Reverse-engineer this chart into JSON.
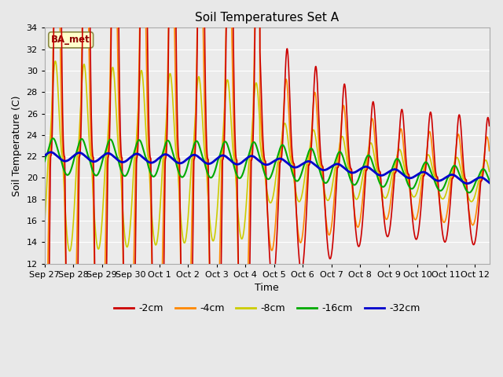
{
  "title": "Soil Temperatures Set A",
  "xlabel": "Time",
  "ylabel": "Soil Temperature (C)",
  "ylim": [
    12,
    34
  ],
  "yticks": [
    12,
    14,
    16,
    18,
    20,
    22,
    24,
    26,
    28,
    30,
    32,
    34
  ],
  "x_labels": [
    "Sep 27",
    "Sep 28",
    "Sep 29",
    "Sep 30",
    "Oct 1",
    "Oct 2",
    "Oct 3",
    "Oct 4",
    "Oct 5",
    "Oct 6",
    "Oct 7",
    "Oct 8",
    "Oct 9",
    "Oct 10",
    "Oct 11",
    "Oct 12"
  ],
  "annotation": "BA_met",
  "bg_color": "#e8e8e8",
  "plot_bg_color": "#ebebeb",
  "series_colors": {
    "-2cm": "#cc0000",
    "-4cm": "#ff8800",
    "-8cm": "#cccc00",
    "-16cm": "#00aa00",
    "-32cm": "#0000cc"
  },
  "series_linewidths": {
    "-2cm": 1.2,
    "-4cm": 1.2,
    "-8cm": 1.2,
    "-16cm": 1.5,
    "-32cm": 2.0
  },
  "n_days": 15.5,
  "points_per_day": 96
}
